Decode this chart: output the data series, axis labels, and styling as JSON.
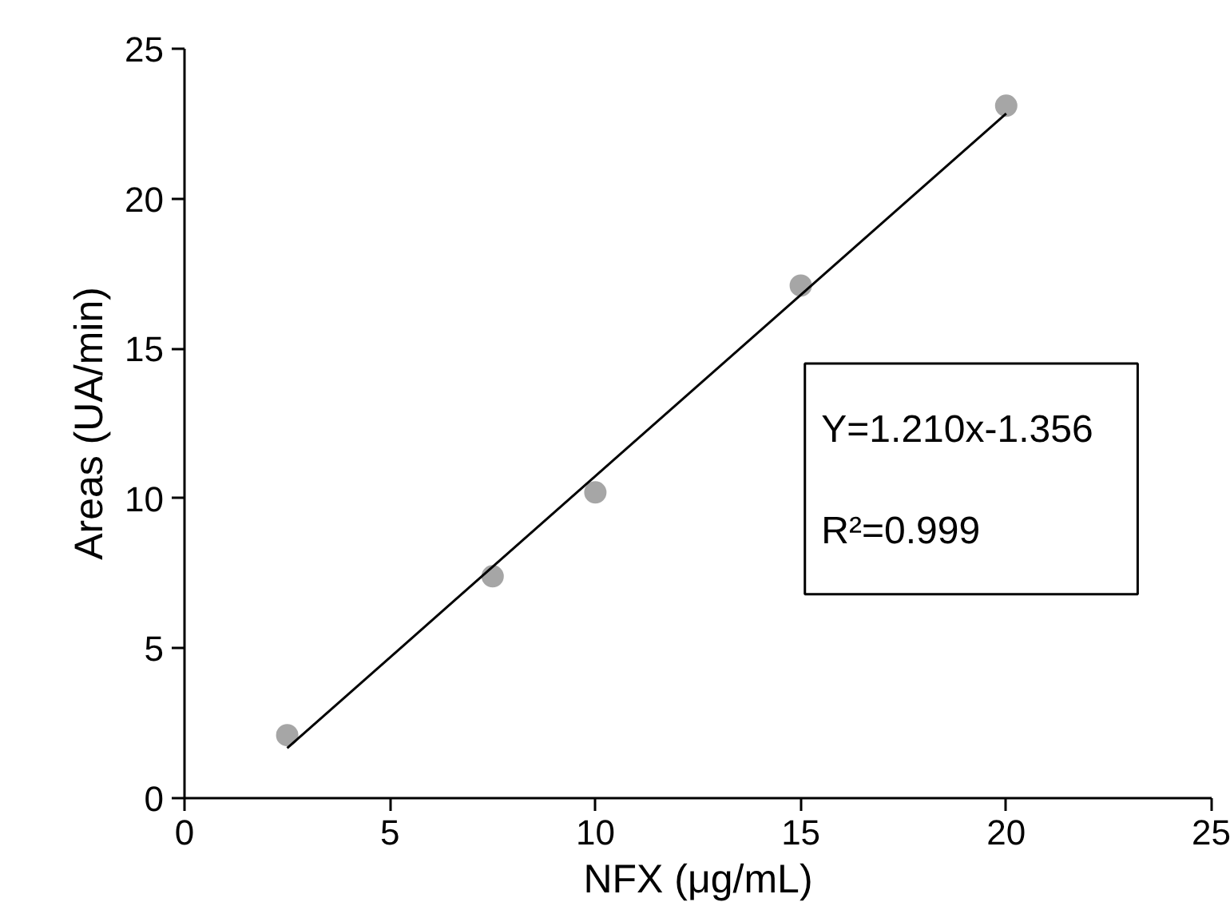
{
  "chart_data": {
    "type": "scatter",
    "xlabel": "NFX (μg/mL)",
    "ylabel": "Areas (UA/min)",
    "x": [
      2.5,
      7.5,
      10,
      15,
      20
    ],
    "series": [
      {
        "color": "#a6a6a6",
        "marker": "circle",
        "values": [
          2.1,
          7.4,
          10.2,
          17.1,
          23.1
        ]
      },
      {
        "type": "line",
        "color": "#000000",
        "marker": "none",
        "x": [
          2.5,
          20
        ],
        "values": [
          1.67,
          22.84
        ]
      }
    ],
    "xlim": [
      0,
      25
    ],
    "ylim": [
      0,
      25
    ],
    "xticks": [
      0,
      5,
      10,
      15,
      20,
      25
    ],
    "yticks": [
      0,
      5,
      10,
      15,
      20,
      25
    ],
    "grid": false,
    "annotations": [
      "Y=1.210x-1.356",
      "R²=0.999"
    ]
  }
}
